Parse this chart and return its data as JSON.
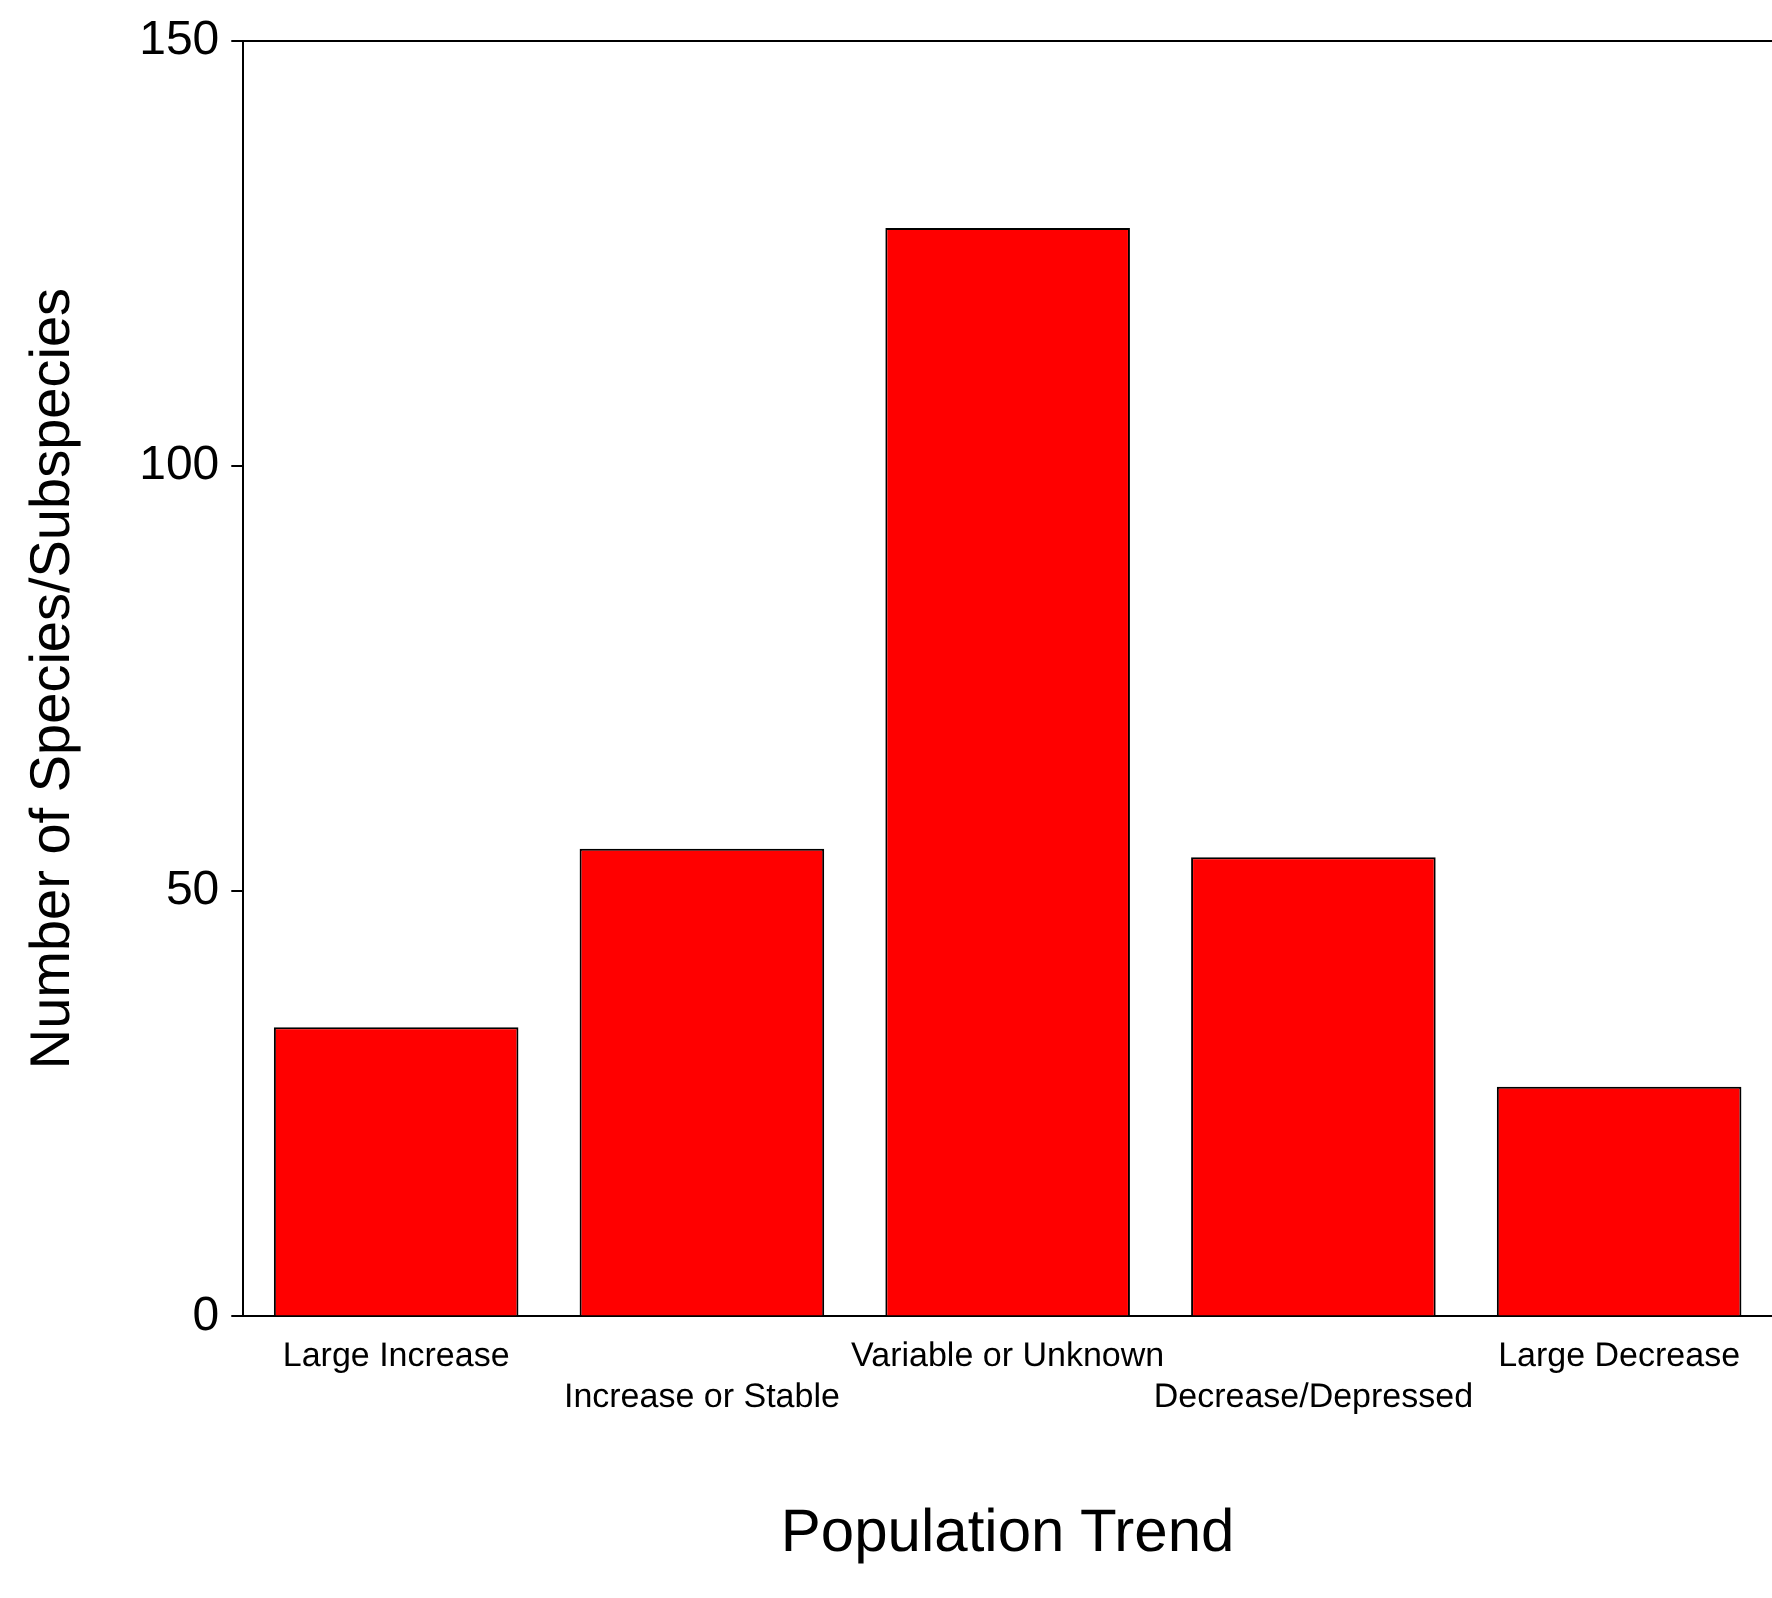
{
  "chart_data": {
    "type": "bar",
    "xlabel": "Population Trend",
    "ylabel": "Number of Species/Subspecies",
    "categories": [
      "Large Increase",
      "Increase or Stable",
      "Variable or Unknown",
      "Decrease/Depressed",
      "Large Decrease"
    ],
    "values": [
      34,
      55,
      128,
      54,
      27
    ],
    "color": "#ff0000",
    "ylim": [
      0,
      150
    ],
    "yticks": [
      0,
      50,
      100,
      150
    ],
    "grid": false
  }
}
